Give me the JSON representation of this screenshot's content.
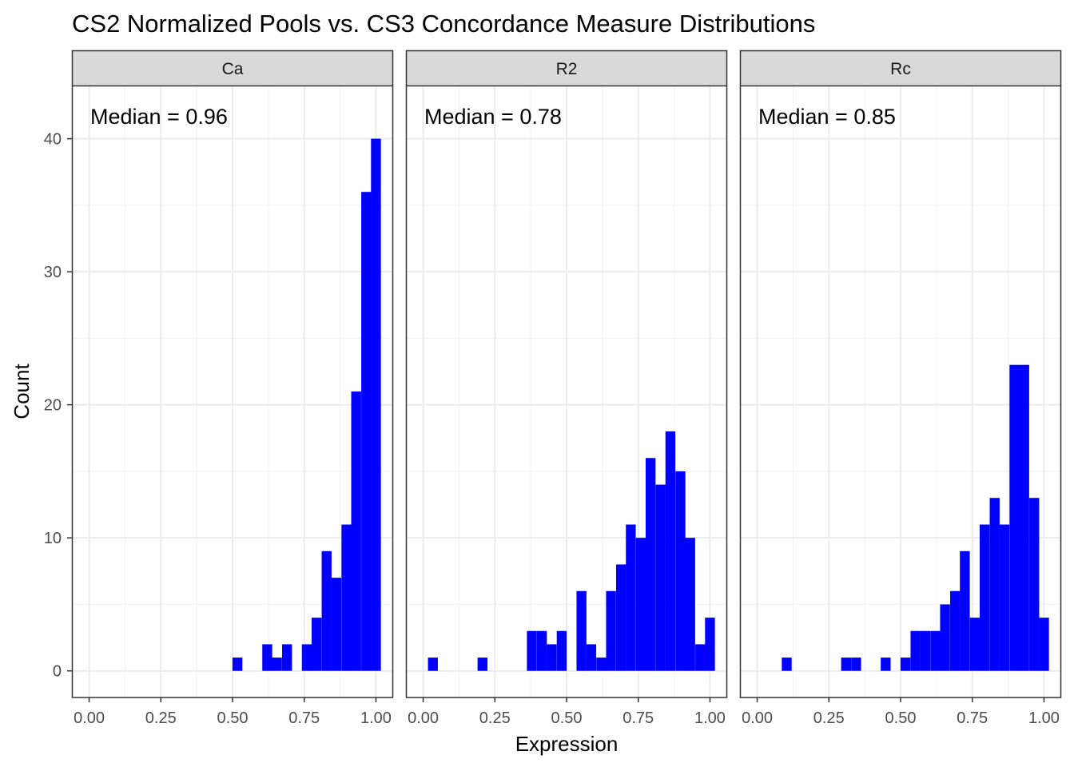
{
  "chart_data": {
    "type": "bar",
    "title": "CS2 Normalized Pools vs. CS3 Concordance Measure Distributions",
    "xlabel": "Expression",
    "ylabel": "Count",
    "xlim": [
      -0.06,
      1.06
    ],
    "ylim": [
      -2,
      44
    ],
    "x_ticks": [
      0,
      0.25,
      0.5,
      0.75,
      1
    ],
    "x_tick_labels": [
      "0.00",
      "0.25",
      "0.50",
      "0.75",
      "1.00"
    ],
    "y_ticks": [
      0,
      10,
      20,
      30,
      40
    ],
    "y_tick_labels": [
      "0",
      "10",
      "20",
      "30",
      "40"
    ],
    "grid": true,
    "bar_color": "#0000ff",
    "bin_width": 0.0345,
    "panels": [
      {
        "name": "Ca",
        "median_label": "Median = 0.96",
        "bins": [
          {
            "x": 0.517,
            "count": 1
          },
          {
            "x": 0.621,
            "count": 2
          },
          {
            "x": 0.655,
            "count": 1
          },
          {
            "x": 0.69,
            "count": 2
          },
          {
            "x": 0.759,
            "count": 2
          },
          {
            "x": 0.793,
            "count": 4
          },
          {
            "x": 0.828,
            "count": 9
          },
          {
            "x": 0.862,
            "count": 7
          },
          {
            "x": 0.897,
            "count": 11
          },
          {
            "x": 0.931,
            "count": 21
          },
          {
            "x": 0.966,
            "count": 36
          },
          {
            "x": 1.0,
            "count": 40
          }
        ]
      },
      {
        "name": "R2",
        "median_label": "Median = 0.78",
        "bins": [
          {
            "x": 0.034,
            "count": 1
          },
          {
            "x": 0.207,
            "count": 1
          },
          {
            "x": 0.379,
            "count": 3
          },
          {
            "x": 0.414,
            "count": 3
          },
          {
            "x": 0.448,
            "count": 2
          },
          {
            "x": 0.483,
            "count": 3
          },
          {
            "x": 0.552,
            "count": 6
          },
          {
            "x": 0.586,
            "count": 2
          },
          {
            "x": 0.621,
            "count": 1
          },
          {
            "x": 0.655,
            "count": 6
          },
          {
            "x": 0.69,
            "count": 8
          },
          {
            "x": 0.724,
            "count": 11
          },
          {
            "x": 0.759,
            "count": 10
          },
          {
            "x": 0.793,
            "count": 16
          },
          {
            "x": 0.828,
            "count": 14
          },
          {
            "x": 0.862,
            "count": 18
          },
          {
            "x": 0.897,
            "count": 15
          },
          {
            "x": 0.931,
            "count": 10
          },
          {
            "x": 0.966,
            "count": 2
          },
          {
            "x": 1.0,
            "count": 4
          }
        ]
      },
      {
        "name": "Rc",
        "median_label": "Median = 0.85",
        "bins": [
          {
            "x": 0.103,
            "count": 1
          },
          {
            "x": 0.31,
            "count": 1
          },
          {
            "x": 0.345,
            "count": 1
          },
          {
            "x": 0.448,
            "count": 1
          },
          {
            "x": 0.517,
            "count": 1
          },
          {
            "x": 0.552,
            "count": 3
          },
          {
            "x": 0.586,
            "count": 3
          },
          {
            "x": 0.621,
            "count": 3
          },
          {
            "x": 0.655,
            "count": 5
          },
          {
            "x": 0.69,
            "count": 6
          },
          {
            "x": 0.724,
            "count": 9
          },
          {
            "x": 0.759,
            "count": 4
          },
          {
            "x": 0.793,
            "count": 11
          },
          {
            "x": 0.828,
            "count": 13
          },
          {
            "x": 0.862,
            "count": 11
          },
          {
            "x": 0.897,
            "count": 23
          },
          {
            "x": 0.931,
            "count": 23
          },
          {
            "x": 0.966,
            "count": 13
          },
          {
            "x": 1.0,
            "count": 4
          }
        ]
      }
    ]
  }
}
